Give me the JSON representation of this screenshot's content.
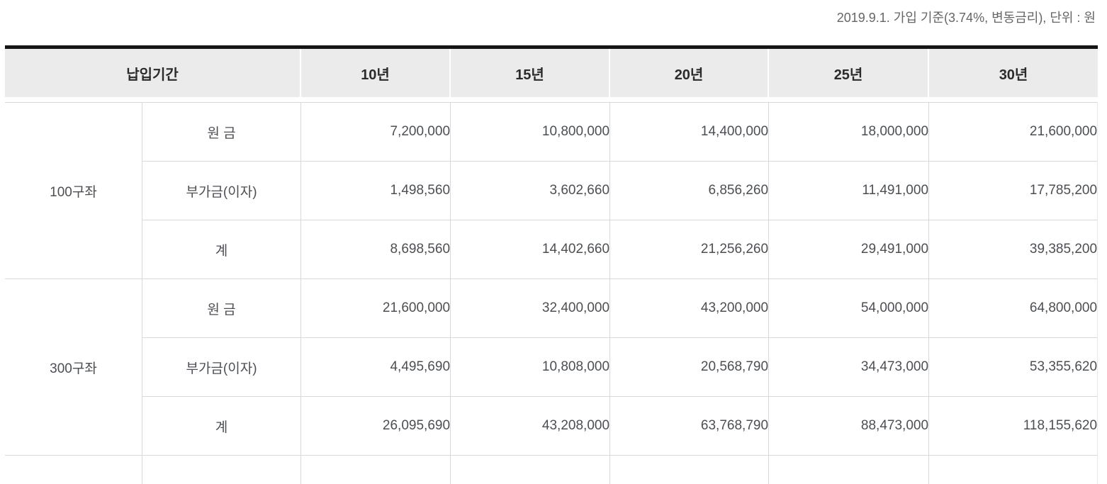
{
  "caption": "2019.9.1. 가입 기준(3.74%, 변동금리), 단위 : 원",
  "table": {
    "header": {
      "period_label": "납입기간",
      "columns": [
        "10년",
        "15년",
        "20년",
        "25년",
        "30년"
      ]
    },
    "groups": [
      {
        "name": "100구좌",
        "rows": [
          {
            "label": "원 금",
            "values": [
              "7,200,000",
              "10,800,000",
              "14,400,000",
              "18,000,000",
              "21,600,000"
            ]
          },
          {
            "label": "부가금(이자)",
            "values": [
              "1,498,560",
              "3,602,660",
              "6,856,260",
              "11,491,000",
              "17,785,200"
            ]
          },
          {
            "label": "계",
            "values": [
              "8,698,560",
              "14,402,660",
              "21,256,260",
              "29,491,000",
              "39,385,200"
            ]
          }
        ]
      },
      {
        "name": "300구좌",
        "rows": [
          {
            "label": "원 금",
            "values": [
              "21,600,000",
              "32,400,000",
              "43,200,000",
              "54,000,000",
              "64,800,000"
            ]
          },
          {
            "label": "부가금(이자)",
            "values": [
              "4,495,690",
              "10,808,000",
              "20,568,790",
              "34,473,000",
              "53,355,620"
            ]
          },
          {
            "label": "계",
            "values": [
              "26,095,690",
              "43,208,000",
              "63,768,790",
              "88,473,000",
              "118,155,620"
            ]
          }
        ]
      }
    ]
  },
  "colors": {
    "header_bg": "#ebebeb",
    "grid": "#d8d8d8",
    "top_border": "#151515",
    "text": "#4b4f54",
    "header_text": "#2b2b2b",
    "caption_text": "#666666"
  }
}
